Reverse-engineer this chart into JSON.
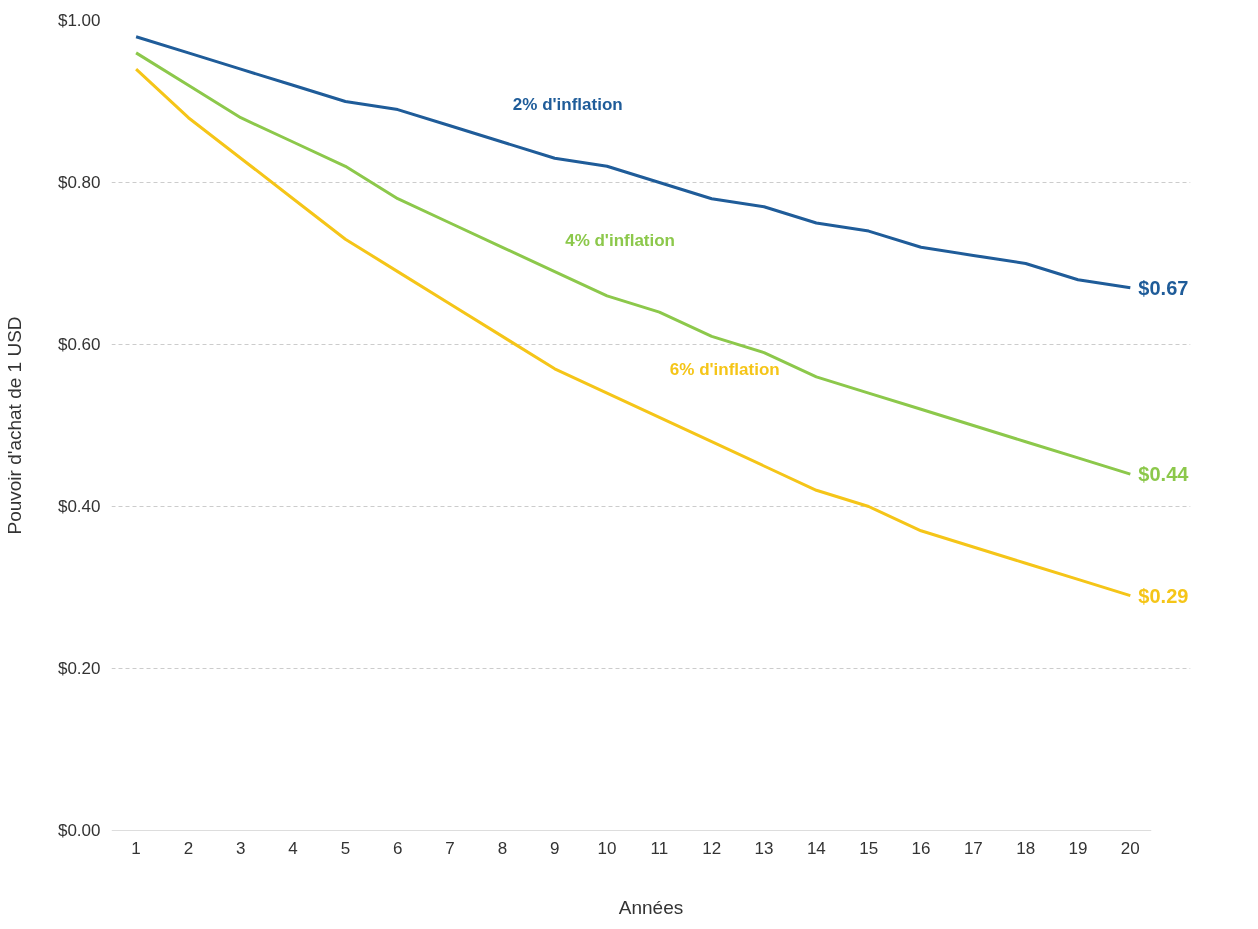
{
  "chart_data": {
    "type": "line",
    "xlabel": "Années",
    "ylabel": "Pouvoir d'achat de 1 USD",
    "x": [
      1,
      2,
      3,
      4,
      5,
      6,
      7,
      8,
      9,
      10,
      11,
      12,
      13,
      14,
      15,
      16,
      17,
      18,
      19,
      20
    ],
    "xlim": [
      0.53,
      20.4
    ],
    "xticks": [
      1,
      2,
      3,
      4,
      5,
      6,
      7,
      8,
      9,
      10,
      11,
      12,
      13,
      14,
      15,
      16,
      17,
      18,
      19,
      20
    ],
    "ylim": [
      0,
      1.0
    ],
    "yticks": [
      {
        "value": 0,
        "label": "$0.00"
      },
      {
        "value": 0.2,
        "label": "$0.20"
      },
      {
        "value": 0.4,
        "label": "$0.40"
      },
      {
        "value": 0.6,
        "label": "$0.60"
      },
      {
        "value": 0.8,
        "label": "$0.80"
      },
      {
        "value": 1.0,
        "label": "$1.00"
      }
    ],
    "grid": "y",
    "legend": false,
    "marker": "none",
    "line_style": "solid",
    "series": [
      {
        "name": "2% d'inflation",
        "color": "#1f5c99",
        "values": [
          0.98,
          0.96,
          0.94,
          0.92,
          0.9,
          0.89,
          0.87,
          0.85,
          0.83,
          0.82,
          0.8,
          0.78,
          0.77,
          0.75,
          0.74,
          0.72,
          0.71,
          0.7,
          0.68,
          0.67
        ],
        "value_labels": [
          null,
          null,
          null,
          null,
          null,
          null,
          null,
          null,
          null,
          null,
          null,
          null,
          null,
          null,
          null,
          null,
          null,
          null,
          null,
          "$0.67"
        ]
      },
      {
        "name": "4% d'inflation",
        "color": "#8cc84b",
        "values": [
          0.96,
          0.92,
          0.88,
          0.85,
          0.82,
          0.78,
          0.75,
          0.72,
          0.69,
          0.66,
          0.64,
          0.61,
          0.59,
          0.56,
          0.54,
          0.52,
          0.5,
          0.48,
          0.46,
          0.44
        ],
        "value_labels": [
          null,
          null,
          null,
          null,
          null,
          null,
          null,
          null,
          null,
          null,
          null,
          null,
          null,
          null,
          null,
          null,
          null,
          null,
          null,
          "$0.44"
        ]
      },
      {
        "name": "6% d'inflation",
        "color": "#f5c518",
        "values": [
          0.94,
          0.88,
          0.83,
          0.78,
          0.73,
          0.69,
          0.65,
          0.61,
          0.57,
          0.54,
          0.51,
          0.48,
          0.45,
          0.42,
          0.4,
          0.37,
          0.35,
          0.33,
          0.31,
          0.29
        ],
        "value_labels": [
          null,
          null,
          null,
          null,
          null,
          null,
          null,
          null,
          null,
          null,
          null,
          null,
          null,
          null,
          null,
          null,
          null,
          null,
          null,
          "$0.29"
        ]
      }
    ]
  }
}
